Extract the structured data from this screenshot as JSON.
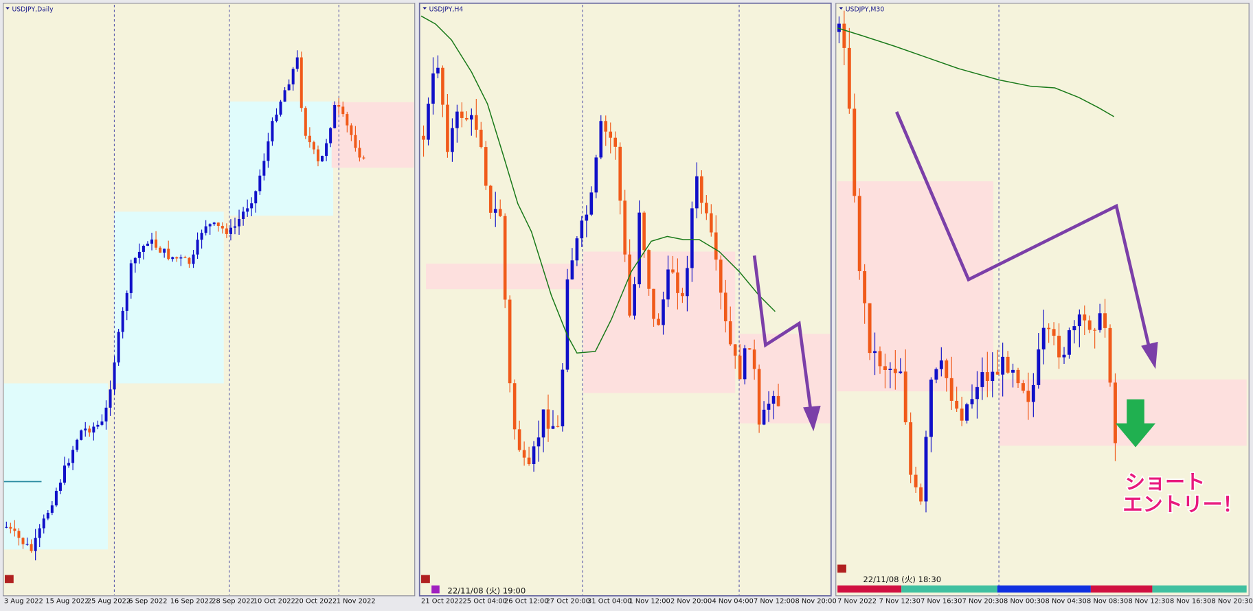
{
  "panels": [
    {
      "title": "USDJPY,Daily",
      "x_labels": [
        "3 Aug 2022",
        "15 Aug 2022",
        "25 Aug 2022",
        "6 Sep 2022",
        "16 Sep 2022",
        "28 Sep 2022",
        "10 Oct 2022",
        "20 Oct 2022",
        "1 Nov 2022"
      ]
    },
    {
      "title": "USDJPY,H4",
      "timestamp": "22/11/08 (火) 19:00",
      "x_labels": [
        "21 Oct 2022",
        "25 Oct 04:00",
        "26 Oct 12:00",
        "27 Oct 20:00",
        "31 Oct 04:00",
        "1 Nov 12:00",
        "2 Nov 20:00",
        "4 Nov 04:00",
        "7 Nov 12:00",
        "8 Nov 20:00"
      ]
    },
    {
      "title": "USDJPY,M30",
      "timestamp": "22/11/08 (火) 18:30",
      "x_labels": [
        "7 Nov 2022",
        "7 Nov 12:30",
        "7 Nov 16:30",
        "7 Nov 20:30",
        "8 Nov 00:30",
        "8 Nov 04:30",
        "8 Nov 08:30",
        "8 Nov 12:30",
        "8 Nov 16:30",
        "8 Nov 20:30"
      ]
    }
  ],
  "annotation": {
    "lines": [
      "ショート",
      "エントリー！"
    ]
  }
}
